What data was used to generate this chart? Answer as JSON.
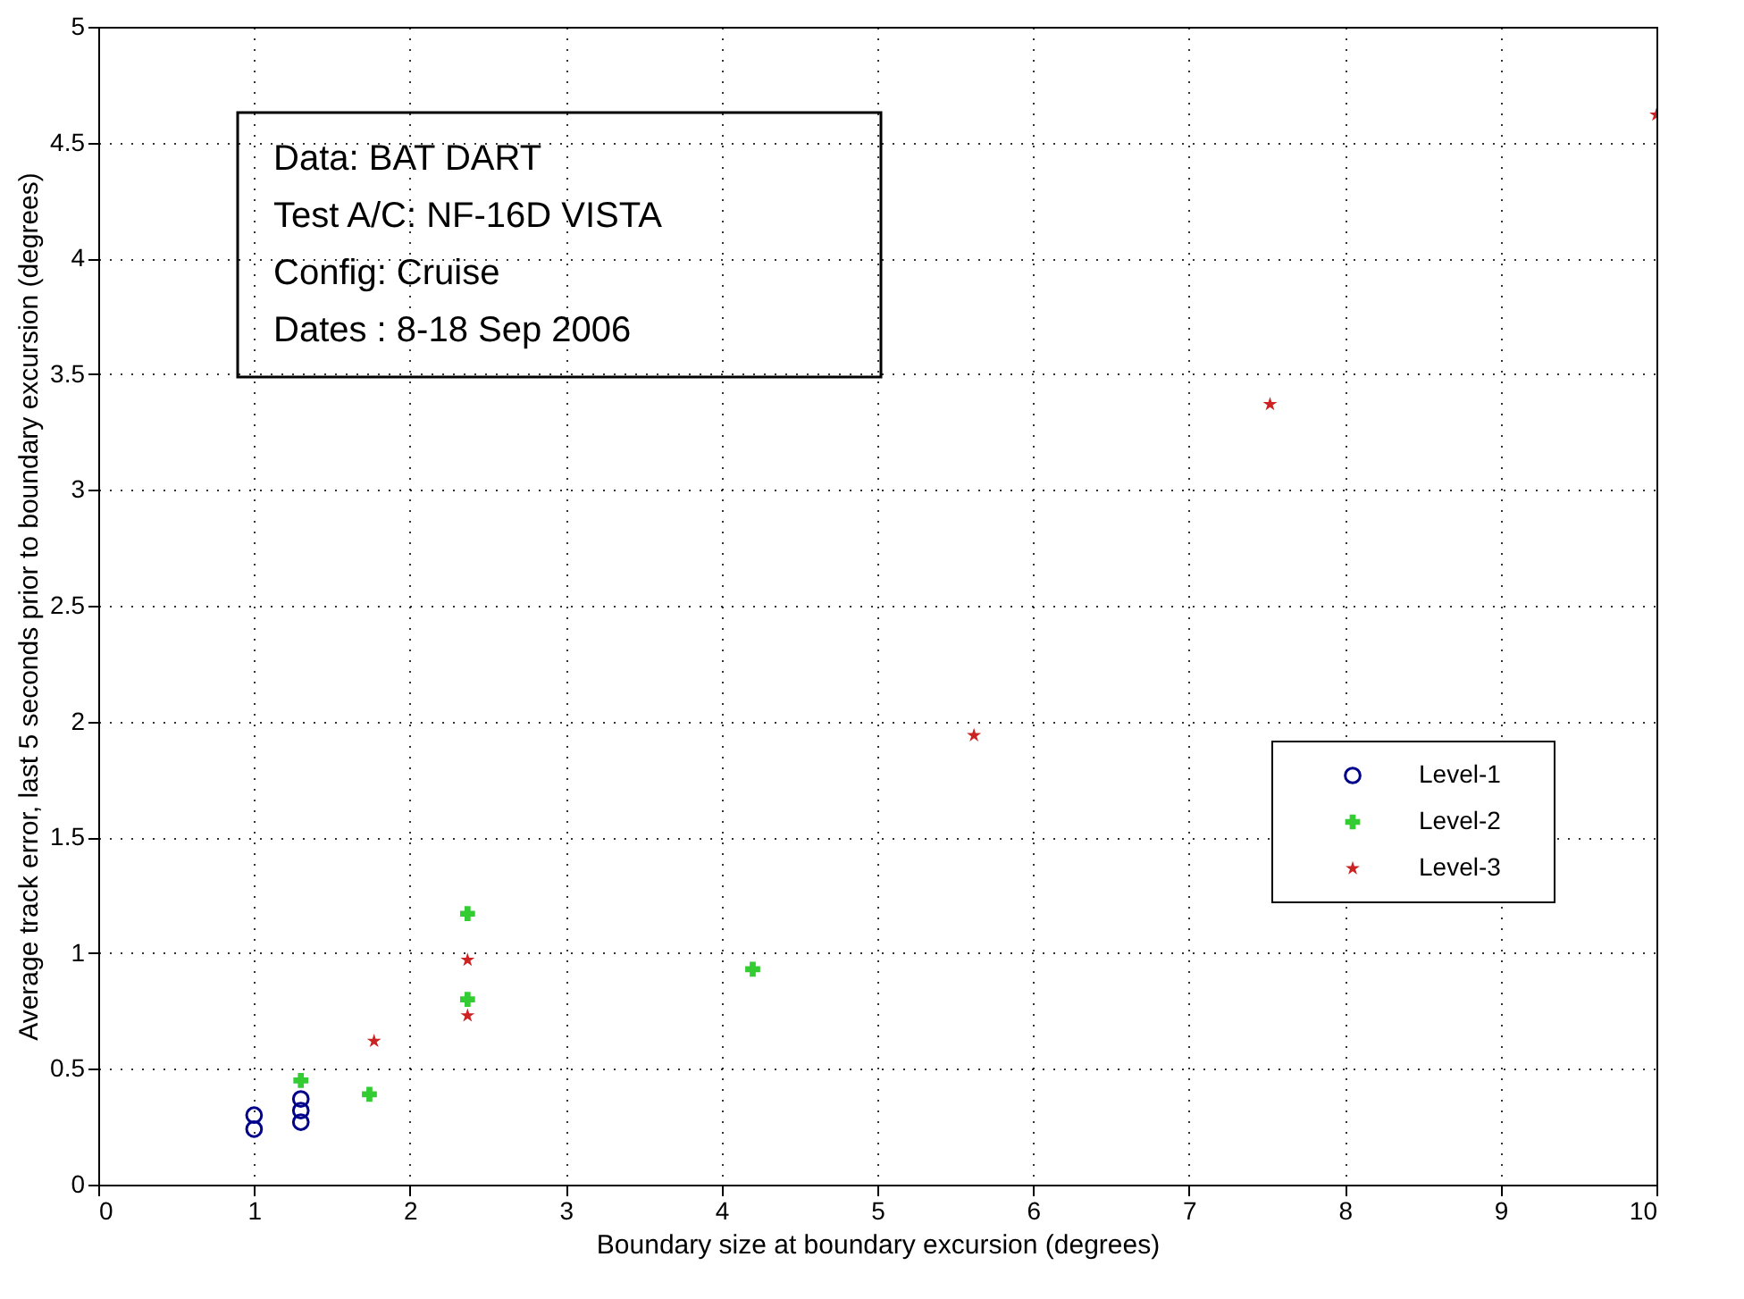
{
  "chart_data": {
    "type": "scatter",
    "xlabel": "Boundary size at boundary excursion (degrees)",
    "ylabel": "Average track error, last 5 seconds prior to boundary excursion (degrees)",
    "xlim": [
      0,
      10
    ],
    "ylim": [
      0,
      5
    ],
    "xticks": [
      0,
      1,
      2,
      3,
      4,
      5,
      6,
      7,
      8,
      9,
      10
    ],
    "yticks": [
      0,
      0.5,
      1,
      1.5,
      2,
      2.5,
      3,
      3.5,
      4,
      4.5,
      5
    ],
    "grid": true,
    "legend": "right",
    "annotations": [
      "Data:       BAT DART",
      "Test A/C: NF-16D VISTA",
      "Config:     Cruise",
      "Dates :     8-18 Sep 2006"
    ],
    "series": [
      {
        "type": "scatter",
        "name": "Level-1",
        "color": "#00008b",
        "marker": "circle",
        "x": [
          1.0,
          1.0,
          1.3,
          1.3,
          1.3
        ],
        "values": [
          0.3,
          0.24,
          0.37,
          0.32,
          0.27
        ]
      },
      {
        "type": "scatter",
        "name": "Level-2",
        "color": "#33cc33",
        "marker": "cross",
        "x": [
          1.3,
          1.74,
          2.37,
          2.37,
          4.2
        ],
        "values": [
          0.45,
          0.39,
          1.17,
          0.8,
          0.93
        ]
      },
      {
        "type": "scatter",
        "name": "Level-3",
        "color": "#cc2222",
        "marker": "star",
        "x": [
          1.77,
          2.37,
          2.37,
          5.62,
          7.52,
          10.0
        ],
        "values": [
          0.62,
          0.97,
          0.73,
          1.94,
          3.37,
          4.62
        ]
      }
    ]
  }
}
